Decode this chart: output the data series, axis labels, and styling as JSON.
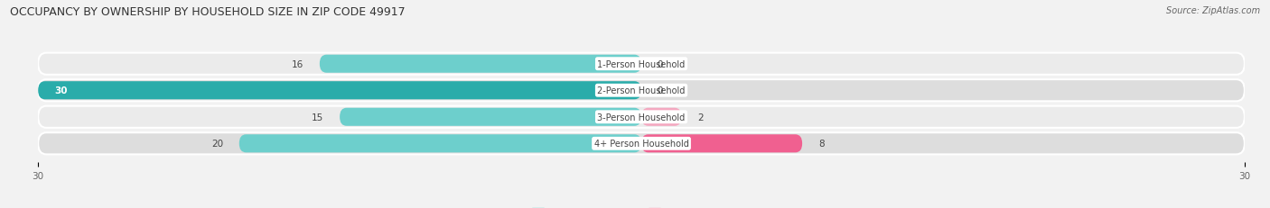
{
  "title": "OCCUPANCY BY OWNERSHIP BY HOUSEHOLD SIZE IN ZIP CODE 49917",
  "source": "Source: ZipAtlas.com",
  "categories": [
    "1-Person Household",
    "2-Person Household",
    "3-Person Household",
    "4+ Person Household"
  ],
  "owner_values": [
    16,
    30,
    15,
    20
  ],
  "renter_values": [
    0,
    0,
    2,
    8
  ],
  "owner_color_light": "#6DCFCC",
  "owner_color_dark": "#2AACAA",
  "renter_color_light": "#F4A8C0",
  "renter_color_dark": "#F06090",
  "axis_min": -30,
  "axis_max": 30,
  "bg_color": "#f2f2f2",
  "row_bg_color": "#e8e8e8",
  "row_bg_alt": "#c8c8c8",
  "label_bg": "#ffffff",
  "title_fontsize": 9,
  "source_fontsize": 7,
  "bar_fontsize": 7.5,
  "legend_fontsize": 8
}
